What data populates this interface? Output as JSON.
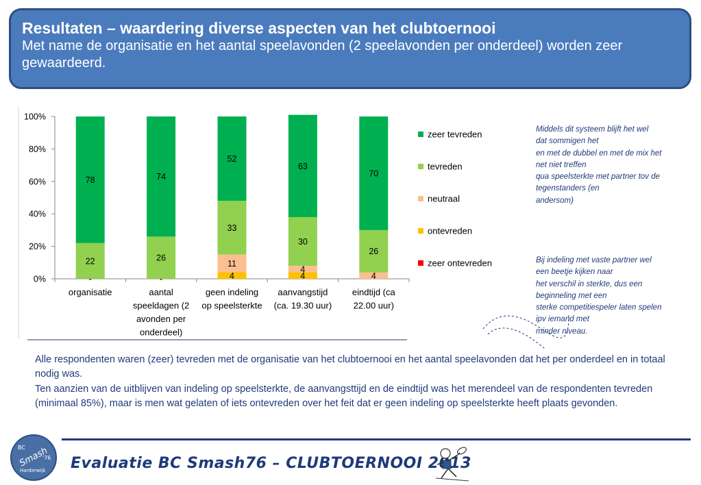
{
  "header": {
    "title": "Resultaten – waardering diverse aspecten van het clubtoernooi",
    "subtitle": "Met name de organisatie en het aantal speelavonden (2 speelavonden per onderdeel) worden zeer gewaardeerd."
  },
  "chart_data": {
    "type": "bar",
    "stacked": true,
    "percent_stacked": true,
    "categories": [
      [
        "organisatie"
      ],
      [
        "aantal",
        "speeldagen (2",
        "avonden per",
        "onderdeel)"
      ],
      [
        "geen indeling",
        "op speelsterkte"
      ],
      [
        "aanvangstijd",
        "(ca. 19.30 uur)"
      ],
      [
        "eindtijd (ca",
        "22.00 uur)"
      ]
    ],
    "series": [
      {
        "name": "zeer ontevreden",
        "color": "#ff0000",
        "values": [
          0,
          0,
          0,
          0,
          0
        ],
        "labels": [
          "-",
          "-",
          "",
          "",
          ""
        ]
      },
      {
        "name": "ontevreden",
        "color": "#ffc000",
        "values": [
          0,
          0,
          4,
          4,
          0
        ],
        "labels": [
          "",
          "",
          "4",
          "4",
          ""
        ]
      },
      {
        "name": "neutraal",
        "color": "#fac090",
        "values": [
          0,
          0,
          11,
          4,
          4
        ],
        "labels": [
          "",
          "",
          "11",
          "4",
          "4"
        ]
      },
      {
        "name": "tevreden",
        "color": "#92d050",
        "values": [
          22,
          26,
          33,
          30,
          26
        ],
        "labels": [
          "22",
          "26",
          "33",
          "30",
          "26"
        ]
      },
      {
        "name": "zeer tevreden",
        "color": "#00b050",
        "values": [
          78,
          74,
          52,
          63,
          70
        ],
        "labels": [
          "78",
          "74",
          "52",
          "63",
          "70"
        ]
      }
    ],
    "ylim": [
      0,
      100
    ],
    "yticks": [
      "0%",
      "20%",
      "40%",
      "60%",
      "80%",
      "100%"
    ],
    "legend_position": "right",
    "grid": false
  },
  "notes": {
    "top": [
      "Middels dit systeem blijft het wel",
      "dat sommigen het",
      "en met de dubbel en met de mix het",
      "net niet treffen",
      "qua speelsterkte met partner tov de",
      "tegenstanders (en",
      "andersom)"
    ],
    "bottom": [
      "Bij indeling met vaste partner wel",
      "een beetje kijken naar",
      "het verschil in sterkte, dus een",
      "beginneling met een",
      "sterke competitiespeler laten spelen",
      "ipv iemand met",
      "minder niveau."
    ]
  },
  "summary": {
    "p1": "Alle respondenten waren (zeer) tevreden met de organisatie van het clubtoernooi en het aantal speelavonden dat het per onderdeel en in totaal nodig was.",
    "p2": "Ten aanzien van de uitblijven van indeling op speelsterkte, de aanvangsttijd en de eindtijd was het merendeel van de respondenten tevreden (minimaal 85%), maar is men wat gelaten of iets ontevreden over het feit dat er geen indeling op speelsterkte heeft plaats gevonden."
  },
  "footer": {
    "title": "Evaluatie BC Smash76 – CLUBTOERNOOI 2013",
    "logo": {
      "bc": "BC",
      "name": "Smash",
      "year": "'76",
      "city": "Harderwijk"
    }
  },
  "colors": {
    "header_bg": "#4a7bbd",
    "text_blue": "#1f3a7a"
  }
}
